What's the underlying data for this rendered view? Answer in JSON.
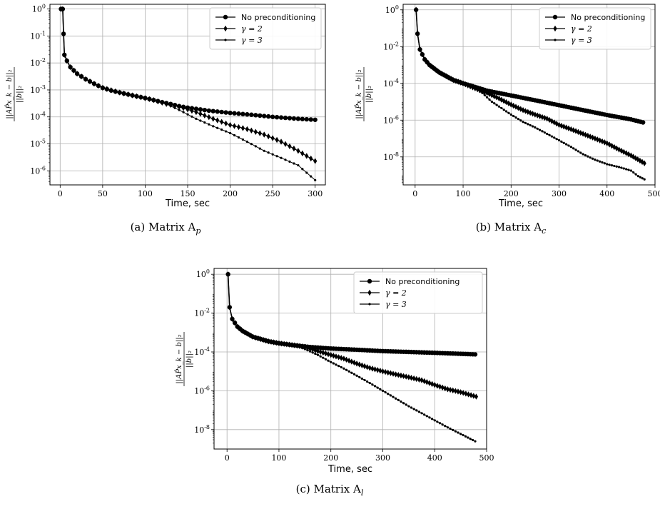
{
  "chart_data": [
    {
      "type": "line",
      "caption": "(a) Matrix A",
      "caption_sub": "p",
      "xlabel": "Time, sec",
      "ylabel": "||AP̂x_k − b||₂ / ||b||₂",
      "yscale": "log",
      "xlim": [
        -12,
        312
      ],
      "ylim": [
        3e-07,
        1.5
      ],
      "xticks": [
        0,
        50,
        100,
        150,
        200,
        250,
        300
      ],
      "yticks": [
        1,
        0.1,
        0.01,
        0.001,
        0.0001,
        1e-05,
        1e-06
      ],
      "ytick_labels": [
        "10^0",
        "10^-1",
        "10^-2",
        "10^-3",
        "10^-4",
        "10^-5",
        "10^-6"
      ],
      "grid": true,
      "legend_position": "top-right",
      "series": [
        {
          "name": "No preconditioning",
          "marker": "circle",
          "pts": [
            [
              1,
              1
            ],
            [
              3,
              1
            ],
            [
              4,
              0.12
            ],
            [
              5,
              0.02
            ],
            [
              8,
              0.012
            ],
            [
              12,
              0.007
            ],
            [
              20,
              0.004
            ],
            [
              30,
              0.0025
            ],
            [
              40,
              0.0017
            ],
            [
              50,
              0.0012
            ],
            [
              60,
              0.00095
            ],
            [
              70,
              0.0008
            ],
            [
              80,
              0.00068
            ],
            [
              90,
              0.00058
            ],
            [
              100,
              0.0005
            ],
            [
              110,
              0.00042
            ],
            [
              120,
              0.00035
            ],
            [
              130,
              0.0003
            ],
            [
              140,
              0.00025
            ],
            [
              150,
              0.00022
            ],
            [
              175,
              0.00017
            ],
            [
              200,
              0.00014
            ],
            [
              225,
              0.00012
            ],
            [
              250,
              0.0001
            ],
            [
              275,
              8.7e-05
            ],
            [
              300,
              7.8e-05
            ]
          ]
        },
        {
          "name": "γ = 2",
          "marker": "diamond",
          "pts": [
            [
              1,
              1
            ],
            [
              3,
              1
            ],
            [
              4,
              0.12
            ],
            [
              5,
              0.02
            ],
            [
              8,
              0.012
            ],
            [
              12,
              0.007
            ],
            [
              20,
              0.004
            ],
            [
              30,
              0.0025
            ],
            [
              40,
              0.0017
            ],
            [
              50,
              0.0012
            ],
            [
              70,
              0.0008
            ],
            [
              90,
              0.00058
            ],
            [
              110,
              0.00042
            ],
            [
              125,
              0.0003
            ],
            [
              140,
              0.00024
            ],
            [
              160,
              0.00015
            ],
            [
              180,
              8.5e-05
            ],
            [
              200,
              5e-05
            ],
            [
              220,
              3.5e-05
            ],
            [
              240,
              2.2e-05
            ],
            [
              260,
              1.2e-05
            ],
            [
              280,
              5.5e-06
            ],
            [
              300,
              2.3e-06
            ]
          ]
        },
        {
          "name": "γ = 3",
          "marker": "dot",
          "pts": [
            [
              1,
              1
            ],
            [
              3,
              1
            ],
            [
              4,
              0.12
            ],
            [
              5,
              0.02
            ],
            [
              8,
              0.012
            ],
            [
              12,
              0.007
            ],
            [
              20,
              0.004
            ],
            [
              30,
              0.0025
            ],
            [
              40,
              0.0017
            ],
            [
              50,
              0.0012
            ],
            [
              70,
              0.0008
            ],
            [
              90,
              0.00058
            ],
            [
              110,
              0.00042
            ],
            [
              125,
              0.0003
            ],
            [
              140,
              0.00018
            ],
            [
              160,
              8.5e-05
            ],
            [
              180,
              4.5e-05
            ],
            [
              200,
              2.5e-05
            ],
            [
              220,
              1.2e-05
            ],
            [
              240,
              5.5e-06
            ],
            [
              260,
              3e-06
            ],
            [
              280,
              1.6e-06
            ],
            [
              300,
              4.5e-07
            ]
          ]
        }
      ]
    },
    {
      "type": "line",
      "caption": "(b) Matrix A",
      "caption_sub": "c",
      "xlabel": "Time, sec",
      "ylabel": "||AP̂x_k − b||₂ / ||b||₂",
      "yscale": "log",
      "xlim": [
        -25,
        500
      ],
      "ylim": [
        3e-10,
        2
      ],
      "xticks": [
        0,
        100,
        200,
        300,
        400,
        500
      ],
      "yticks": [
        1,
        0.01,
        0.0001,
        1e-06,
        1e-08
      ],
      "ytick_labels": [
        "10^0",
        "10^-2",
        "10^-4",
        "10^-6",
        "10^-8"
      ],
      "grid": true,
      "legend_position": "top-right",
      "series": [
        {
          "name": "No preconditioning",
          "marker": "circle",
          "pts": [
            [
              2,
              1
            ],
            [
              5,
              0.05
            ],
            [
              10,
              0.007
            ],
            [
              20,
              0.002
            ],
            [
              30,
              0.001
            ],
            [
              50,
              0.0004
            ],
            [
              80,
              0.00015
            ],
            [
              100,
              0.0001
            ],
            [
              120,
              7e-05
            ],
            [
              150,
              4e-05
            ],
            [
              200,
              2.2e-05
            ],
            [
              250,
              1.2e-05
            ],
            [
              300,
              6.5e-06
            ],
            [
              350,
              3.5e-06
            ],
            [
              400,
              1.9e-06
            ],
            [
              450,
              1.1e-06
            ],
            [
              475,
              7.5e-07
            ]
          ]
        },
        {
          "name": "γ = 2",
          "marker": "diamond",
          "pts": [
            [
              2,
              1
            ],
            [
              5,
              0.05
            ],
            [
              10,
              0.007
            ],
            [
              20,
              0.002
            ],
            [
              30,
              0.001
            ],
            [
              50,
              0.0004
            ],
            [
              80,
              0.00015
            ],
            [
              100,
              0.0001
            ],
            [
              120,
              6e-05
            ],
            [
              150,
              3e-05
            ],
            [
              175,
              1.5e-05
            ],
            [
              200,
              7e-06
            ],
            [
              225,
              3.5e-06
            ],
            [
              250,
              2e-06
            ],
            [
              275,
              1.2e-06
            ],
            [
              300,
              5.5e-07
            ],
            [
              325,
              3.2e-07
            ],
            [
              350,
              1.8e-07
            ],
            [
              375,
              1e-07
            ],
            [
              400,
              5.5e-08
            ],
            [
              425,
              2.5e-08
            ],
            [
              450,
              1.2e-08
            ],
            [
              478,
              4.5e-09
            ]
          ]
        },
        {
          "name": "γ = 3",
          "marker": "dot",
          "pts": [
            [
              2,
              1
            ],
            [
              5,
              0.05
            ],
            [
              10,
              0.007
            ],
            [
              20,
              0.002
            ],
            [
              30,
              0.001
            ],
            [
              50,
              0.0004
            ],
            [
              80,
              0.00015
            ],
            [
              100,
              0.0001
            ],
            [
              120,
              6e-05
            ],
            [
              140,
              3e-05
            ],
            [
              160,
              1e-05
            ],
            [
              180,
              4.5e-06
            ],
            [
              200,
              2e-06
            ],
            [
              225,
              8e-07
            ],
            [
              250,
              4e-07
            ],
            [
              275,
              1.8e-07
            ],
            [
              300,
              8e-08
            ],
            [
              325,
              3.5e-08
            ],
            [
              350,
              1.4e-08
            ],
            [
              375,
              7e-09
            ],
            [
              400,
              4e-09
            ],
            [
              425,
              2.8e-09
            ],
            [
              450,
              1.8e-09
            ],
            [
              465,
              9e-10
            ],
            [
              478,
              6e-10
            ]
          ]
        }
      ]
    },
    {
      "type": "line",
      "caption": "(c) Matrix A",
      "caption_sub": "l",
      "xlabel": "Time, sec",
      "ylabel": "||AP̂x_k − b||₂ / ||b||₂",
      "yscale": "log",
      "xlim": [
        -25,
        500
      ],
      "ylim": [
        1e-09,
        2
      ],
      "xticks": [
        0,
        100,
        200,
        300,
        400,
        500
      ],
      "yticks": [
        1,
        0.01,
        0.0001,
        1e-06,
        1e-08
      ],
      "ytick_labels": [
        "10^0",
        "10^-2",
        "10^-4",
        "10^-6",
        "10^-8"
      ],
      "grid": true,
      "legend_position": "top-right",
      "series": [
        {
          "name": "No preconditioning",
          "marker": "circle",
          "pts": [
            [
              2,
              1
            ],
            [
              5,
              0.02
            ],
            [
              10,
              0.005
            ],
            [
              20,
              0.002
            ],
            [
              30,
              0.0012
            ],
            [
              50,
              0.0006
            ],
            [
              80,
              0.00035
            ],
            [
              100,
              0.00028
            ],
            [
              130,
              0.00022
            ],
            [
              160,
              0.00018
            ],
            [
              200,
              0.00015
            ],
            [
              250,
              0.00013
            ],
            [
              300,
              0.00011
            ],
            [
              350,
              0.0001
            ],
            [
              400,
              9e-05
            ],
            [
              450,
              8e-05
            ],
            [
              478,
              7.5e-05
            ]
          ]
        },
        {
          "name": "γ = 2",
          "marker": "diamond",
          "pts": [
            [
              2,
              1
            ],
            [
              5,
              0.02
            ],
            [
              10,
              0.005
            ],
            [
              20,
              0.002
            ],
            [
              30,
              0.0012
            ],
            [
              50,
              0.0006
            ],
            [
              80,
              0.00035
            ],
            [
              100,
              0.00028
            ],
            [
              130,
              0.00022
            ],
            [
              150,
              0.00018
            ],
            [
              175,
              0.00011
            ],
            [
              200,
              7e-05
            ],
            [
              225,
              4.5e-05
            ],
            [
              250,
              2.5e-05
            ],
            [
              275,
              1.5e-05
            ],
            [
              300,
              1e-05
            ],
            [
              325,
              7e-06
            ],
            [
              350,
              5e-06
            ],
            [
              375,
              3.5e-06
            ],
            [
              400,
              2e-06
            ],
            [
              425,
              1.2e-06
            ],
            [
              450,
              8.5e-07
            ],
            [
              480,
              5e-07
            ]
          ]
        },
        {
          "name": "γ = 3",
          "marker": "dot",
          "pts": [
            [
              2,
              1
            ],
            [
              5,
              0.02
            ],
            [
              10,
              0.005
            ],
            [
              20,
              0.002
            ],
            [
              30,
              0.0012
            ],
            [
              50,
              0.0006
            ],
            [
              80,
              0.00035
            ],
            [
              100,
              0.00028
            ],
            [
              130,
              0.00022
            ],
            [
              150,
              0.00014
            ],
            [
              175,
              7e-05
            ],
            [
              200,
              3e-05
            ],
            [
              225,
              1.4e-05
            ],
            [
              250,
              6e-06
            ],
            [
              275,
              2.5e-06
            ],
            [
              300,
              1e-06
            ],
            [
              325,
              4e-07
            ],
            [
              350,
              1.6e-07
            ],
            [
              375,
              7e-08
            ],
            [
              400,
              3e-08
            ],
            [
              425,
              1.3e-08
            ],
            [
              450,
              6e-09
            ],
            [
              478,
              2.5e-09
            ]
          ]
        }
      ]
    }
  ]
}
